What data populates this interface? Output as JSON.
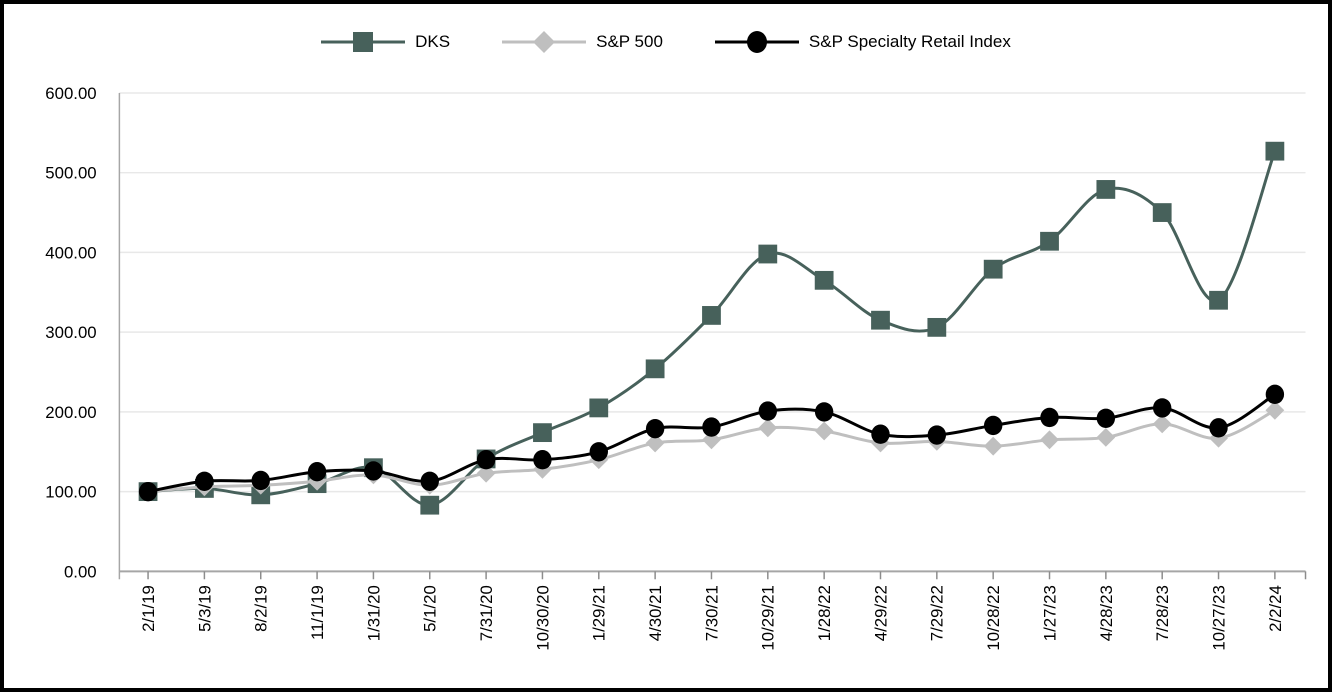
{
  "chart_data": {
    "type": "line",
    "title": "",
    "xlabel": "",
    "ylabel": "",
    "x_labels": [
      "2/1/19",
      "5/3/19",
      "8/2/19",
      "11/1/19",
      "1/31/20",
      "5/1/20",
      "7/31/20",
      "10/30/20",
      "1/29/21",
      "4/30/21",
      "7/30/21",
      "10/29/21",
      "1/28/22",
      "4/29/22",
      "7/29/22",
      "10/28/22",
      "1/27/23",
      "4/28/23",
      "7/28/23",
      "10/27/23",
      "2/2/24"
    ],
    "y_tick_labels": [
      "0.00",
      "100.00",
      "200.00",
      "300.00",
      "400.00",
      "500.00",
      "600.00"
    ],
    "ylim": [
      0,
      600
    ],
    "grid": "horizontal",
    "legend_position": "top-center",
    "series": [
      {
        "name": "DKS",
        "marker": "square",
        "color": "#47615B",
        "values": [
          100,
          104,
          96,
          110,
          130,
          83,
          141,
          174,
          205,
          254,
          321,
          398,
          365,
          315,
          306,
          379,
          414,
          479,
          450,
          340,
          527
        ]
      },
      {
        "name": "S&P 500",
        "marker": "diamond",
        "color": "#BFBFBF",
        "values": [
          100,
          106,
          108,
          113,
          121,
          108,
          123,
          128,
          140,
          161,
          165,
          180,
          176,
          161,
          163,
          157,
          165,
          168,
          185,
          167,
          202
        ]
      },
      {
        "name": "S&P Specialty Retail Index",
        "marker": "circle",
        "color": "#000000",
        "values": [
          100,
          113,
          114,
          125,
          126,
          113,
          140,
          140,
          150,
          179,
          181,
          201,
          200,
          172,
          171,
          183,
          193,
          192,
          205,
          180,
          222
        ]
      }
    ]
  },
  "colors": {
    "background": "#FFFFFF",
    "frame_border": "#000000",
    "gridline": "#E8E8E8",
    "axis": "#A6A6A6",
    "tick": "#8C8C8C",
    "text": "#000000"
  }
}
